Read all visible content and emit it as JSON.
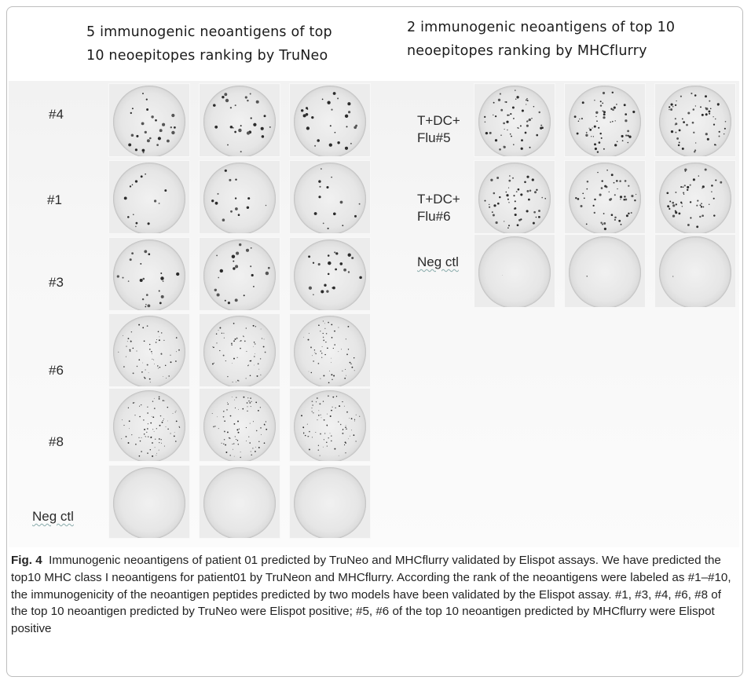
{
  "header_left": "5 immunogenic neoantigens of top 10 neoepitopes ranking by TruNeo",
  "header_right": "2 immunogenic neoantigens of top 10 neoepitopes ranking by MHCflurry",
  "left_rows": [
    {
      "label": "#4",
      "density": 26,
      "size": 1.6
    },
    {
      "label": "#1",
      "density": 14,
      "size": 1.4
    },
    {
      "label": "#3",
      "density": 22,
      "size": 1.6
    },
    {
      "label": "#6",
      "density": 60,
      "size": 0.7
    },
    {
      "label": "#8",
      "density": 80,
      "size": 0.7
    },
    {
      "label": "Neg ctl",
      "density": 0,
      "size": 0.5
    }
  ],
  "right_rows": [
    {
      "label": "T+DC+ Flu#5",
      "density": 55,
      "size": 1.2
    },
    {
      "label": "T+DC+ Flu#6",
      "density": 50,
      "size": 1.2
    },
    {
      "label": "Neg ctl",
      "density": 1,
      "size": 0.5
    }
  ],
  "caption": {
    "fig_label": "Fig. 4",
    "text": "Immunogenic neoantigens of patient 01 predicted by TruNeo and MHCflurry validated by Elispot assays. We have predicted the top10 MHC class I neoantigens for patient01 by TruNeon and MHCflurry. According the rank of the neoantigens were labeled as #1–#10, the immunogenicity of the neoantigen peptides predicted by two models have been validated by the Elispot assay. #1, #3, #4, #6, #8 of the top 10 neoantigen predicted by TruNeo were Elispot positive; #5, #6 of the top 10 neoantigen predicted by MHCflurry were Elispot positive"
  }
}
